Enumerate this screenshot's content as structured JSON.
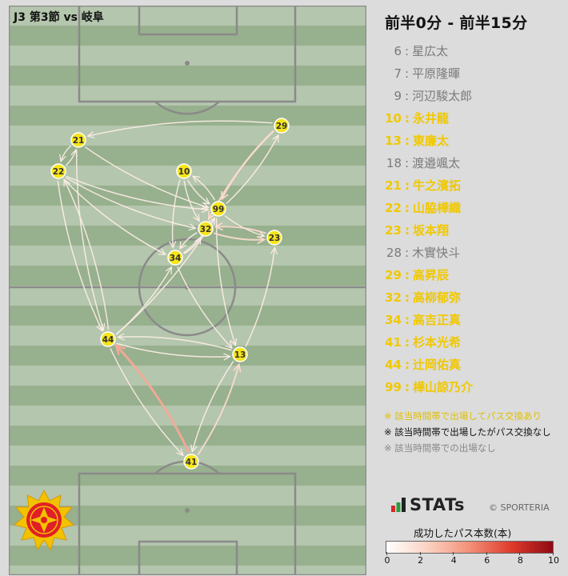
{
  "header": {
    "match_title": "J3 第3節 vs 岐阜",
    "period_title": "前半0分 - 前半15分"
  },
  "players": [
    {
      "number": "6",
      "name": "星広太",
      "active": false
    },
    {
      "number": "7",
      "name": "平原隆暉",
      "active": false
    },
    {
      "number": "9",
      "name": "河辺駿太郎",
      "active": false
    },
    {
      "number": "10",
      "name": "永井龍",
      "active": true
    },
    {
      "number": "13",
      "name": "東廉太",
      "active": true
    },
    {
      "number": "18",
      "name": "渡邉颯太",
      "active": false
    },
    {
      "number": "21",
      "name": "牛之濱拓",
      "active": true
    },
    {
      "number": "22",
      "name": "山脇樺織",
      "active": true
    },
    {
      "number": "23",
      "name": "坂本翔",
      "active": true
    },
    {
      "number": "28",
      "name": "木實快斗",
      "active": false
    },
    {
      "number": "29",
      "name": "高昇辰",
      "active": true
    },
    {
      "number": "32",
      "name": "高柳郁弥",
      "active": true
    },
    {
      "number": "34",
      "name": "高吉正真",
      "active": true
    },
    {
      "number": "41",
      "name": "杉本光希",
      "active": true
    },
    {
      "number": "44",
      "name": "辻岡佑真",
      "active": true
    },
    {
      "number": "99",
      "name": "樺山諒乃介",
      "active": true
    }
  ],
  "notes": {
    "active_pass": "※ 該当時間帯で出場してパス交換あり",
    "active_no_pass": "※ 該当時間帯で出場したがパス交換なし",
    "not_played": "※ 該当時間帯での出場なし"
  },
  "brand": {
    "stats_logo": "STATs",
    "copyright": "© SPORTERIA"
  },
  "legend": {
    "title": "成功したパス本数(本)",
    "ticks": [
      "0",
      "2",
      "4",
      "6",
      "8",
      "10"
    ]
  },
  "colors": {
    "active": "#f0c800",
    "inactive": "#7a7a7a",
    "pitch_light": "#b4c6ad",
    "pitch_dark": "#97b08e",
    "node_fill": "#f5e51a"
  },
  "chart_data": {
    "type": "pass-network",
    "color_scale": {
      "min": 0,
      "max": 10,
      "colors": [
        "#ffffff",
        "#fbd2c2",
        "#f29078",
        "#de3b2c",
        "#8f0a12"
      ]
    },
    "nodes": [
      "21",
      "22",
      "10",
      "29",
      "99",
      "32",
      "23",
      "34",
      "44",
      "13",
      "41"
    ],
    "passes": [
      {
        "from": "21",
        "to": "22",
        "count": 1
      },
      {
        "from": "22",
        "to": "21",
        "count": 1
      },
      {
        "from": "21",
        "to": "99",
        "count": 1
      },
      {
        "from": "22",
        "to": "99",
        "count": 1
      },
      {
        "from": "22",
        "to": "32",
        "count": 1
      },
      {
        "from": "22",
        "to": "34",
        "count": 1
      },
      {
        "from": "21",
        "to": "44",
        "count": 1
      },
      {
        "from": "22",
        "to": "44",
        "count": 1
      },
      {
        "from": "44",
        "to": "22",
        "count": 1
      },
      {
        "from": "10",
        "to": "99",
        "count": 1
      },
      {
        "from": "10",
        "to": "34",
        "count": 1
      },
      {
        "from": "99",
        "to": "10",
        "count": 1
      },
      {
        "from": "10",
        "to": "32",
        "count": 1
      },
      {
        "from": "29",
        "to": "99",
        "count": 2
      },
      {
        "from": "99",
        "to": "29",
        "count": 1
      },
      {
        "from": "29",
        "to": "21",
        "count": 1
      },
      {
        "from": "29",
        "to": "32",
        "count": 2
      },
      {
        "from": "99",
        "to": "23",
        "count": 1
      },
      {
        "from": "23",
        "to": "32",
        "count": 2
      },
      {
        "from": "32",
        "to": "23",
        "count": 2
      },
      {
        "from": "34",
        "to": "99",
        "count": 1
      },
      {
        "from": "34",
        "to": "32",
        "count": 1
      },
      {
        "from": "32",
        "to": "34",
        "count": 1
      },
      {
        "from": "34",
        "to": "13",
        "count": 1
      },
      {
        "from": "44",
        "to": "34",
        "count": 1
      },
      {
        "from": "44",
        "to": "99",
        "count": 1
      },
      {
        "from": "44",
        "to": "13",
        "count": 1
      },
      {
        "from": "13",
        "to": "44",
        "count": 1
      },
      {
        "from": "99",
        "to": "13",
        "count": 1
      },
      {
        "from": "13",
        "to": "23",
        "count": 1
      },
      {
        "from": "44",
        "to": "41",
        "count": 1
      },
      {
        "from": "41",
        "to": "44",
        "count": 4
      },
      {
        "from": "13",
        "to": "41",
        "count": 1
      },
      {
        "from": "41",
        "to": "13",
        "count": 2
      }
    ]
  }
}
